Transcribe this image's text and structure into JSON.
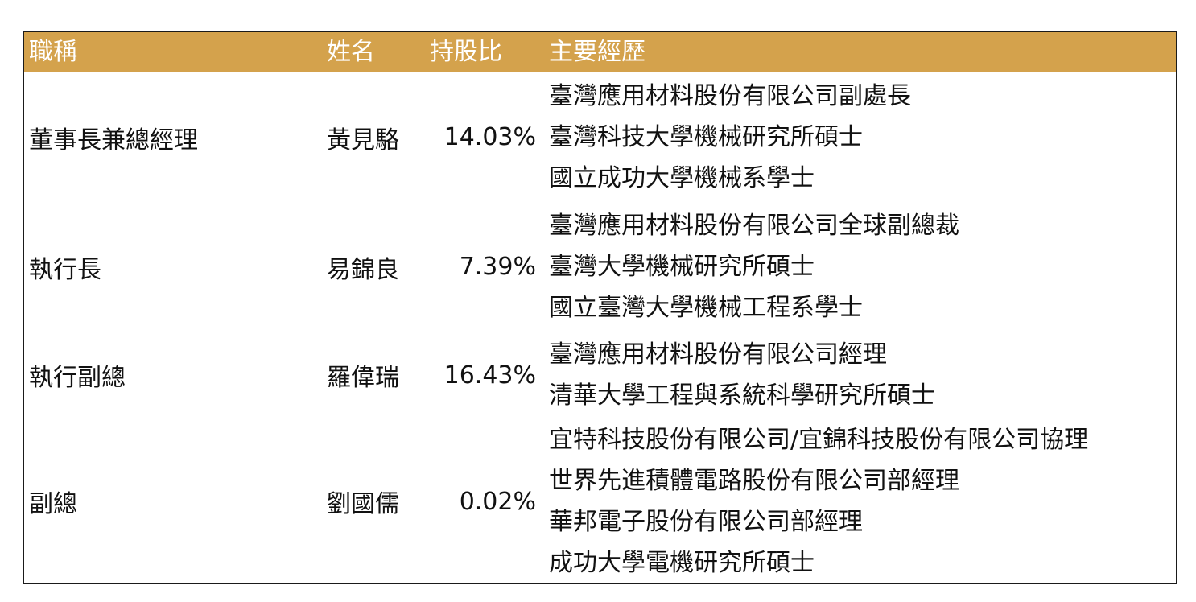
{
  "table": {
    "headers": {
      "title": "職稱",
      "name": "姓名",
      "share": "持股比",
      "experience": "主要經歷"
    },
    "rows": [
      {
        "title": "董事長兼總經理",
        "name": "黃見駱",
        "share": "14.03%",
        "experience": [
          "臺灣應用材料股份有限公司副處長",
          "臺灣科技大學機械研究所碩士",
          "國立成功大學機械系學士"
        ]
      },
      {
        "title": "執行長",
        "name": "易錦良",
        "share": "7.39%",
        "experience": [
          "臺灣應用材料股份有限公司全球副總裁",
          "臺灣大學機械研究所碩士",
          "國立臺灣大學機械工程系學士"
        ]
      },
      {
        "title": "執行副總",
        "name": "羅偉瑞",
        "share": "16.43%",
        "experience": [
          "臺灣應用材料股份有限公司經理",
          "清華大學工程與系統科學研究所碩士"
        ]
      },
      {
        "title": "副總",
        "name": "劉國儒",
        "share": "0.02%",
        "experience": [
          "宜特科技股份有限公司/宜錦科技股份有限公司協理",
          "世界先進積體電路股份有限公司部經理",
          "華邦電子股份有限公司部經理",
          "成功大學電機研究所碩士"
        ]
      }
    ]
  }
}
